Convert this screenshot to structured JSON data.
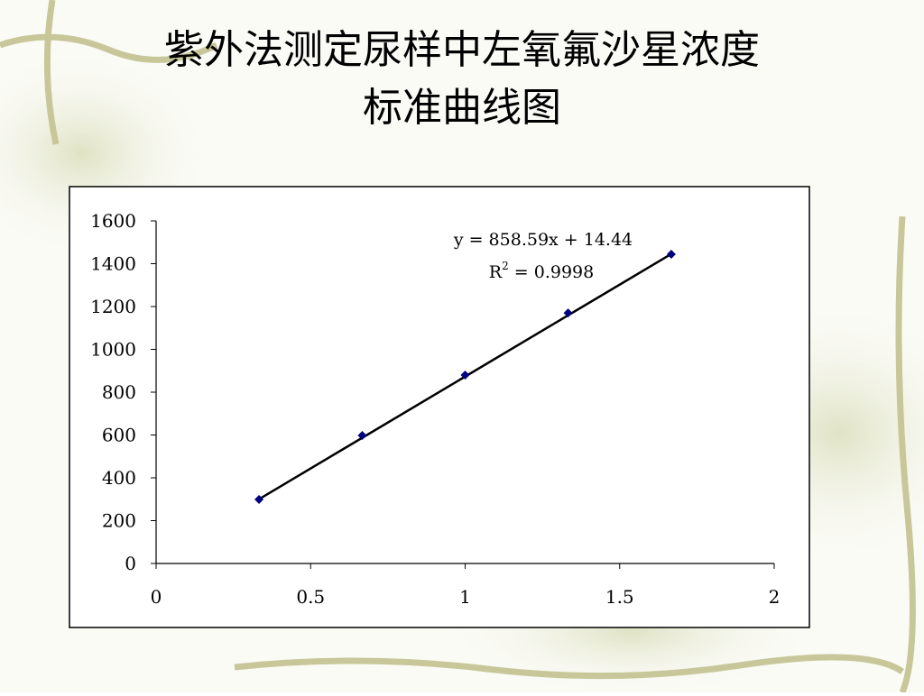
{
  "chart_data": {
    "type": "scatter",
    "title": [
      "紫外法测定尿样中左氧氟沙星浓度",
      "标准曲线图"
    ],
    "x": [
      0.333,
      0.667,
      1,
      1.333,
      1.667
    ],
    "values": [
      299,
      598,
      880,
      1170,
      1444
    ],
    "color": "#000080",
    "xlim": [
      0,
      2
    ],
    "xticks": [
      0,
      0.5,
      1,
      1.5,
      2
    ],
    "ylim": [
      0,
      1600
    ],
    "yticks": [
      0,
      200,
      400,
      600,
      800,
      1000,
      1200,
      1400,
      1600
    ],
    "trendline": {
      "slope": 858.59,
      "intercept": 14.44,
      "color": "#000000"
    },
    "equation": "y = 858.59x + 14.44",
    "r_squared": {
      "base": "R",
      "superscript": "2",
      "text": " = 0.9998"
    },
    "grid": false
  }
}
